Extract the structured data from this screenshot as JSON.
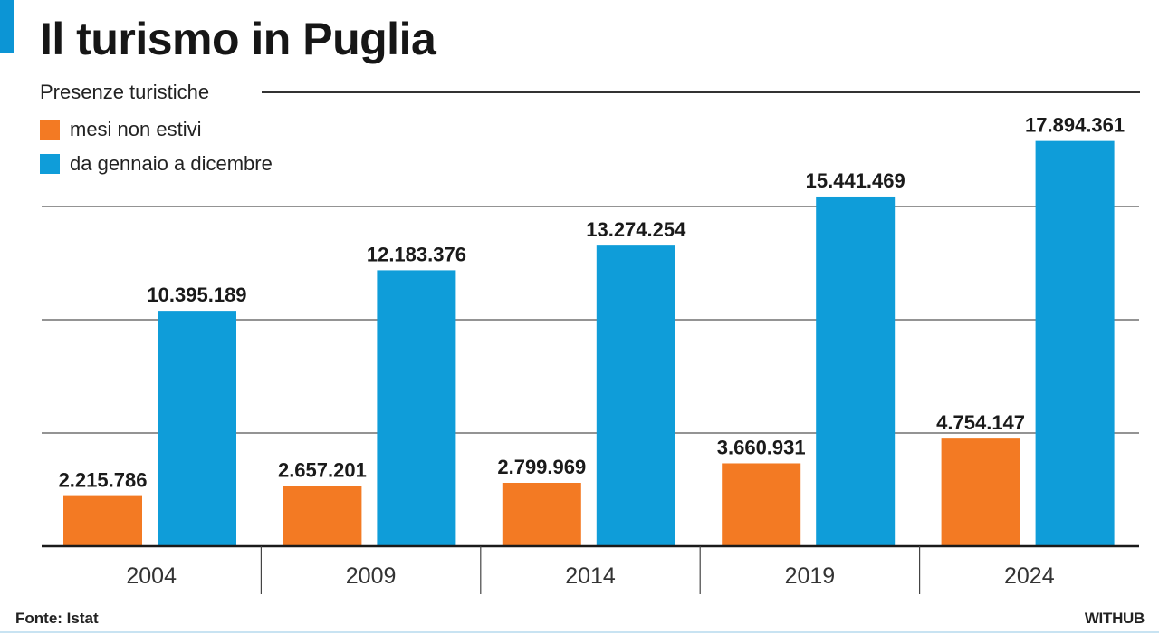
{
  "colors": {
    "accent": "#0c95d5",
    "orange": "#f37a23",
    "blue": "#0f9dd9"
  },
  "header": {
    "title": "Il turismo in Puglia"
  },
  "footer": {
    "source": "Fonte: Istat",
    "brand": "WITHUB"
  },
  "chart_data": {
    "type": "bar",
    "title": "Il turismo in Puglia",
    "subtitle": "Presenze turistiche",
    "categories": [
      "2004",
      "2009",
      "2014",
      "2019",
      "2024"
    ],
    "series": [
      {
        "name": "mesi non estivi",
        "color": "#f37a23",
        "values": [
          2215786,
          2657201,
          2799969,
          3660931,
          4754147
        ],
        "labels": [
          "2.215.786",
          "2.657.201",
          "2.799.969",
          "3.660.931",
          "4.754.147"
        ]
      },
      {
        "name": "da gennaio a dicembre",
        "color": "#0f9dd9",
        "values": [
          10395189,
          12183376,
          13274254,
          15441469,
          17894361
        ],
        "labels": [
          "10.395.189",
          "12.183.376",
          "13.274.254",
          "15.441.469",
          "17.894.361"
        ]
      }
    ],
    "ylim": [
      0,
      20000000
    ],
    "gridlines": [
      5000000,
      10000000,
      15000000
    ],
    "grid": true,
    "legend_position": "top-left"
  }
}
